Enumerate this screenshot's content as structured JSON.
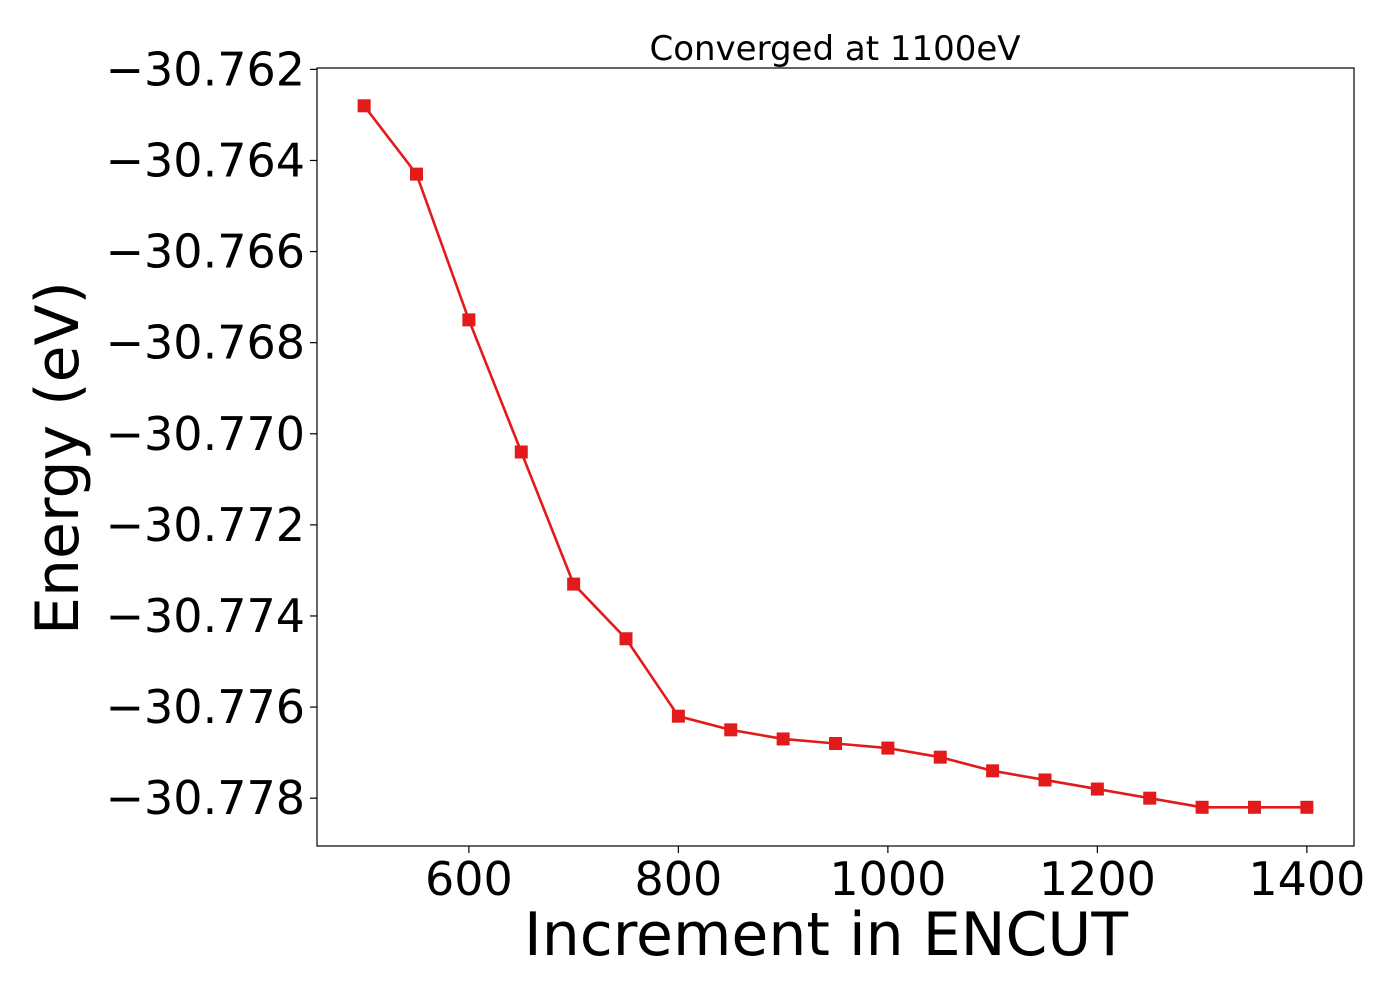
{
  "chart_data": {
    "type": "line",
    "title": "Converged at 1100eV",
    "xlabel": "Increment in ENCUT",
    "ylabel": "Energy (eV)",
    "xlim": [
      455,
      1445
    ],
    "ylim": [
      -30.77905,
      -30.76197
    ],
    "xticks": [
      600,
      800,
      1000,
      1200,
      1400
    ],
    "yticks": [
      -30.762,
      -30.764,
      -30.766,
      -30.768,
      -30.77,
      -30.772,
      -30.774,
      -30.776,
      -30.778
    ],
    "ytick_labels": [
      "−30.762",
      "−30.764",
      "−30.766",
      "−30.768",
      "−30.770",
      "−30.772",
      "−30.774",
      "−30.776",
      "−30.778"
    ],
    "grid": false,
    "series": [
      {
        "color": "#e31a1c",
        "marker": "square",
        "x": [
          500,
          550,
          600,
          650,
          700,
          750,
          800,
          850,
          900,
          950,
          1000,
          1050,
          1100,
          1150,
          1200,
          1250,
          1300,
          1350,
          1400
        ],
        "y": [
          -30.7628,
          -30.7643,
          -30.7675,
          -30.7704,
          -30.7733,
          -30.7745,
          -30.7762,
          -30.7765,
          -30.7767,
          -30.7768,
          -30.7769,
          -30.7771,
          -30.7774,
          -30.7776,
          -30.7778,
          -30.778,
          -30.7782,
          -30.7782,
          -30.7782
        ]
      }
    ]
  }
}
